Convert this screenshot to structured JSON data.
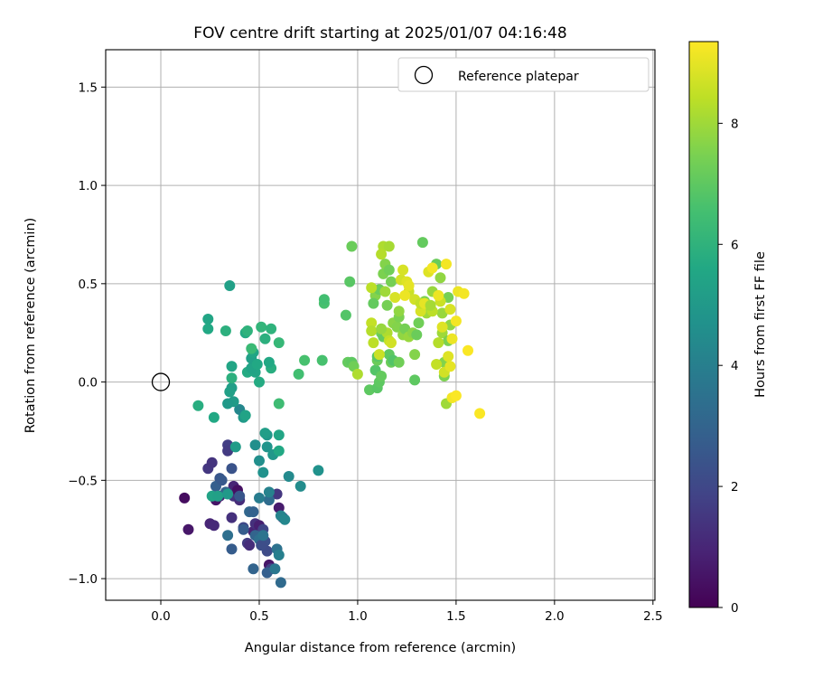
{
  "chart_data": {
    "type": "scatter",
    "title": "FOV centre drift starting at 2025/01/07 04:16:48",
    "xlabel": "Angular distance from reference (arcmin)",
    "ylabel": "Rotation from reference (arcmin)",
    "xlim": [
      -0.28,
      2.51
    ],
    "ylim": [
      -1.11,
      1.69
    ],
    "xticks": [
      0.0,
      0.5,
      1.0,
      1.5,
      2.0,
      2.5
    ],
    "xtick_labels": [
      "0.0",
      "0.5",
      "1.0",
      "1.5",
      "2.0",
      "2.5"
    ],
    "yticks": [
      -1.0,
      -0.5,
      0.0,
      0.5,
      1.0,
      1.5
    ],
    "ytick_labels": [
      "−1.0",
      "−0.5",
      "0.0",
      "0.5",
      "1.0",
      "1.5"
    ],
    "grid": true,
    "legend": {
      "placement": "top-right",
      "entries": [
        "Reference platepar"
      ]
    },
    "reference_point": {
      "x": 0.0,
      "y": 0.0,
      "marker": "open-circle"
    },
    "colorbar": {
      "label": "Hours from first FF file",
      "colormap": "viridis",
      "range": [
        0,
        9.35
      ],
      "ticks": [
        0,
        2,
        4,
        6,
        8
      ],
      "tick_labels": [
        "0",
        "2",
        "4",
        "6",
        "8"
      ]
    },
    "points": [
      [
        0.12,
        -0.59,
        0.3
      ],
      [
        0.14,
        -0.75,
        0.6
      ],
      [
        0.25,
        -0.72,
        1.0
      ],
      [
        0.27,
        -0.73,
        1.1
      ],
      [
        0.28,
        -0.6,
        0.5
      ],
      [
        0.3,
        -0.58,
        0.9
      ],
      [
        0.24,
        -0.44,
        1.5
      ],
      [
        0.26,
        -0.41,
        1.4
      ],
      [
        0.34,
        -0.32,
        1.7
      ],
      [
        0.34,
        -0.35,
        1.6
      ],
      [
        0.36,
        -0.57,
        0.8
      ],
      [
        0.36,
        -0.69,
        1.3
      ],
      [
        0.37,
        -0.53,
        1.0
      ],
      [
        0.37,
        -0.58,
        1.4
      ],
      [
        0.39,
        -0.55,
        0.4
      ],
      [
        0.4,
        -0.6,
        1.2
      ],
      [
        0.42,
        -0.74,
        2.0
      ],
      [
        0.44,
        -0.82,
        1.6
      ],
      [
        0.45,
        -0.83,
        1.2
      ],
      [
        0.47,
        -0.76,
        0.9
      ],
      [
        0.48,
        -0.72,
        1.3
      ],
      [
        0.5,
        -0.73,
        0.8
      ],
      [
        0.52,
        -0.75,
        1.9
      ],
      [
        0.53,
        -0.81,
        2.3
      ],
      [
        0.54,
        -0.86,
        2.1
      ],
      [
        0.55,
        -0.93,
        0.6
      ],
      [
        0.56,
        -0.95,
        1.8
      ],
      [
        0.59,
        -0.57,
        1.5
      ],
      [
        0.6,
        -0.64,
        0.7
      ],
      [
        0.62,
        -0.69,
        1.5
      ],
      [
        0.3,
        -0.49,
        2.5
      ],
      [
        0.28,
        -0.53,
        2.8
      ],
      [
        0.31,
        -0.5,
        2.6
      ],
      [
        0.33,
        -0.56,
        3.0
      ],
      [
        0.36,
        -0.44,
        2.4
      ],
      [
        0.4,
        -0.58,
        2.5
      ],
      [
        0.42,
        -0.75,
        2.7
      ],
      [
        0.45,
        -0.66,
        3.1
      ],
      [
        0.47,
        -0.66,
        2.9
      ],
      [
        0.48,
        -0.78,
        3.0
      ],
      [
        0.5,
        -0.8,
        3.4
      ],
      [
        0.51,
        -0.83,
        2.2
      ],
      [
        0.52,
        -0.78,
        3.6
      ],
      [
        0.54,
        -0.97,
        2.8
      ],
      [
        0.55,
        -0.6,
        3.3
      ],
      [
        0.58,
        -0.95,
        3.7
      ],
      [
        0.59,
        -0.85,
        3.5
      ],
      [
        0.6,
        -0.88,
        4.0
      ],
      [
        0.61,
        -1.02,
        3.2
      ],
      [
        0.34,
        -0.78,
        3.4
      ],
      [
        0.36,
        -0.85,
        2.7
      ],
      [
        0.47,
        -0.95,
        3.0
      ],
      [
        0.5,
        -0.59,
        3.9
      ],
      [
        0.55,
        -0.56,
        4.1
      ],
      [
        0.61,
        -0.68,
        4.2
      ],
      [
        0.63,
        -0.7,
        4.3
      ],
      [
        0.71,
        -0.53,
        4.5
      ],
      [
        0.65,
        -0.48,
        4.4
      ],
      [
        0.5,
        -0.4,
        4.6
      ],
      [
        0.52,
        -0.46,
        4.7
      ],
      [
        0.54,
        -0.33,
        4.8
      ],
      [
        0.57,
        -0.37,
        4.9
      ],
      [
        0.48,
        -0.32,
        4.6
      ],
      [
        0.54,
        -0.27,
        4.9
      ],
      [
        0.42,
        -0.18,
        5.0
      ],
      [
        0.4,
        -0.14,
        4.3
      ],
      [
        0.37,
        -0.1,
        5.1
      ],
      [
        0.34,
        -0.11,
        5.0
      ],
      [
        0.36,
        -0.03,
        5.2
      ],
      [
        0.35,
        -0.05,
        5.3
      ],
      [
        0.43,
        -0.17,
        5.4
      ],
      [
        0.53,
        -0.26,
        5.2
      ],
      [
        0.6,
        -0.27,
        5.5
      ],
      [
        0.38,
        -0.33,
        5.1
      ],
      [
        0.26,
        -0.58,
        5.4
      ],
      [
        0.29,
        -0.58,
        5.3
      ],
      [
        0.34,
        -0.57,
        5.0
      ],
      [
        0.8,
        -0.45,
        4.7
      ],
      [
        0.6,
        -0.35,
        5.6
      ],
      [
        0.27,
        -0.18,
        5.6
      ],
      [
        0.19,
        -0.12,
        5.8
      ],
      [
        0.5,
        0.0,
        5.7
      ],
      [
        0.44,
        0.05,
        5.7
      ],
      [
        0.36,
        0.02,
        5.9
      ],
      [
        0.48,
        0.05,
        5.5
      ],
      [
        0.56,
        0.07,
        5.8
      ],
      [
        0.55,
        0.1,
        5.6
      ],
      [
        0.46,
        0.07,
        5.4
      ],
      [
        0.46,
        0.12,
        5.3
      ],
      [
        0.49,
        0.09,
        5.6
      ],
      [
        0.53,
        0.22,
        5.9
      ],
      [
        0.51,
        0.28,
        6.1
      ],
      [
        0.56,
        0.27,
        6.0
      ],
      [
        0.6,
        0.2,
        6.2
      ],
      [
        0.47,
        0.15,
        5.5
      ],
      [
        0.43,
        0.25,
        5.7
      ],
      [
        0.36,
        0.08,
        5.5
      ],
      [
        0.35,
        0.49,
        5.3
      ],
      [
        0.24,
        0.32,
        5.5
      ],
      [
        0.24,
        0.27,
        5.6
      ],
      [
        0.33,
        0.26,
        5.9
      ],
      [
        0.44,
        0.26,
        6.0
      ],
      [
        0.46,
        0.17,
        6.3
      ],
      [
        0.6,
        -0.11,
        6.4
      ],
      [
        0.7,
        0.04,
        6.5
      ],
      [
        0.73,
        0.11,
        6.6
      ],
      [
        0.82,
        0.11,
        6.6
      ],
      [
        0.83,
        0.4,
        6.6
      ],
      [
        0.83,
        0.42,
        6.5
      ],
      [
        0.94,
        0.34,
        6.8
      ],
      [
        0.96,
        0.51,
        6.9
      ],
      [
        0.97,
        0.69,
        7.2
      ],
      [
        0.95,
        0.1,
        7.1
      ],
      [
        0.97,
        0.1,
        7.0
      ],
      [
        0.98,
        0.08,
        7.3
      ],
      [
        1.06,
        -0.04,
        7.0
      ],
      [
        1.09,
        0.06,
        6.8
      ],
      [
        1.1,
        -0.03,
        6.9
      ],
      [
        1.11,
        0.0,
        7.0
      ],
      [
        1.12,
        0.03,
        7.1
      ],
      [
        1.1,
        0.11,
        7.2
      ],
      [
        1.1,
        0.13,
        6.9
      ],
      [
        1.12,
        0.25,
        7.3
      ],
      [
        1.13,
        0.23,
        7.1
      ],
      [
        1.16,
        0.14,
        7.0
      ],
      [
        1.17,
        0.1,
        7.2
      ],
      [
        1.18,
        0.11,
        6.8
      ],
      [
        1.21,
        0.1,
        7.3
      ],
      [
        1.15,
        0.39,
        7.4
      ],
      [
        1.09,
        0.44,
        7.6
      ],
      [
        1.11,
        0.47,
        7.2
      ],
      [
        1.08,
        0.4,
        7.1
      ],
      [
        1.13,
        0.55,
        7.5
      ],
      [
        1.14,
        0.6,
        7.6
      ],
      [
        1.16,
        0.57,
        7.3
      ],
      [
        1.17,
        0.51,
        7.4
      ],
      [
        1.18,
        0.3,
        7.7
      ],
      [
        1.2,
        0.28,
        7.6
      ],
      [
        1.21,
        0.33,
        7.5
      ],
      [
        1.23,
        0.24,
        7.8
      ],
      [
        1.24,
        0.27,
        7.4
      ],
      [
        1.26,
        0.23,
        7.9
      ],
      [
        1.28,
        0.25,
        7.7
      ],
      [
        1.29,
        0.01,
        7.0
      ],
      [
        1.29,
        0.14,
        7.6
      ],
      [
        1.3,
        0.24,
        7.2
      ],
      [
        1.31,
        0.3,
        7.3
      ],
      [
        1.33,
        0.71,
        7.1
      ],
      [
        1.34,
        0.41,
        7.5
      ],
      [
        1.35,
        0.35,
        8.0
      ],
      [
        1.38,
        0.46,
        7.9
      ],
      [
        1.4,
        0.6,
        7.2
      ],
      [
        1.42,
        0.53,
        7.8
      ],
      [
        1.43,
        0.35,
        7.9
      ],
      [
        1.43,
        0.25,
        8.0
      ],
      [
        1.44,
        0.1,
        7.6
      ],
      [
        1.44,
        0.03,
        7.5
      ],
      [
        1.45,
        -0.11,
        8.0
      ],
      [
        1.46,
        0.43,
        7.4
      ],
      [
        1.47,
        0.29,
        7.8
      ],
      [
        1.46,
        0.21,
        7.5
      ],
      [
        1.13,
        0.69,
        8.2
      ],
      [
        1.16,
        0.69,
        8.1
      ],
      [
        1.12,
        0.65,
        8.3
      ],
      [
        1.07,
        0.48,
        8.4
      ],
      [
        1.07,
        0.3,
        8.5
      ],
      [
        1.07,
        0.26,
        8.3
      ],
      [
        1.08,
        0.2,
        8.4
      ],
      [
        1.11,
        0.14,
        8.6
      ],
      [
        1.15,
        0.25,
        8.2
      ],
      [
        1.16,
        0.21,
        8.5
      ],
      [
        1.17,
        0.2,
        8.7
      ],
      [
        1.19,
        0.43,
        8.8
      ],
      [
        1.22,
        0.52,
        8.7
      ],
      [
        1.23,
        0.57,
        8.8
      ],
      [
        1.25,
        0.51,
        8.9
      ],
      [
        1.26,
        0.46,
        8.6
      ],
      [
        1.29,
        0.42,
        8.7
      ],
      [
        1.32,
        0.36,
        8.8
      ],
      [
        1.32,
        0.4,
        8.5
      ],
      [
        1.36,
        0.56,
        8.9
      ],
      [
        1.38,
        0.36,
        8.4
      ],
      [
        1.4,
        0.09,
        8.5
      ],
      [
        1.41,
        0.2,
        8.3
      ],
      [
        1.42,
        0.41,
        8.6
      ],
      [
        1.43,
        0.28,
        8.9
      ],
      [
        1.44,
        0.05,
        8.7
      ],
      [
        1.46,
        0.13,
        8.9
      ],
      [
        1.47,
        0.37,
        8.8
      ],
      [
        1.47,
        0.08,
        9.0
      ],
      [
        1.48,
        0.22,
        9.1
      ],
      [
        1.48,
        -0.08,
        9.2
      ],
      [
        1.5,
        -0.07,
        9.3
      ],
      [
        1.5,
        0.31,
        9.2
      ],
      [
        1.51,
        0.46,
        9.1
      ],
      [
        1.54,
        0.45,
        9.2
      ],
      [
        1.56,
        0.16,
        9.3
      ],
      [
        1.62,
        -0.16,
        9.3
      ],
      [
        1.38,
        0.58,
        9.2
      ],
      [
        1.41,
        0.44,
        9.1
      ],
      [
        1.34,
        0.4,
        9.0
      ],
      [
        1.26,
        0.49,
        9.0
      ],
      [
        1.24,
        0.44,
        9.1
      ],
      [
        1.45,
        0.6,
        9.2
      ],
      [
        1.37,
        0.39,
        8.1
      ],
      [
        1.0,
        0.04,
        8.2
      ],
      [
        1.12,
        0.27,
        7.9
      ],
      [
        1.21,
        0.36,
        7.8
      ],
      [
        1.14,
        0.46,
        8.0
      ]
    ]
  }
}
